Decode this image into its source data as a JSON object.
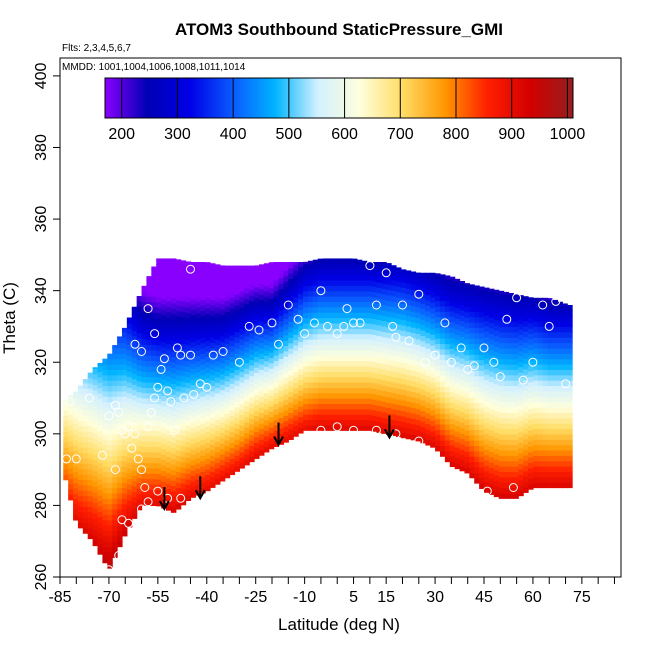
{
  "chart_data": {
    "type": "heatmap",
    "title": "ATOM3 Southbound StaticPressure_GMI",
    "notes": [
      "Flts: 2,3,4,5,6,7",
      "MMDD: 1001,1004,1006,1008,1011,1014"
    ],
    "xlabel": "Latitude (deg N)",
    "ylabel": "Theta (C)",
    "xlim": [
      -85,
      87
    ],
    "ylim": [
      260,
      405
    ],
    "x_ticks": [
      -85,
      -70,
      -55,
      -40,
      -25,
      -10,
      5,
      15,
      30,
      45,
      60,
      75
    ],
    "y_ticks": [
      260,
      280,
      300,
      320,
      340,
      360,
      380,
      400
    ],
    "colorbar": {
      "ticks": [
        200,
        300,
        400,
        500,
        600,
        700,
        800,
        900,
        1000
      ],
      "range": [
        170,
        1010
      ],
      "colors": [
        "#8a00ff",
        "#0000b4",
        "#0000e6",
        "#0a5aff",
        "#00b4ff",
        "#d2f0ff",
        "#ffffdc",
        "#ffdc64",
        "#ff9600",
        "#ff1e00",
        "#d20000",
        "#961e1e"
      ]
    },
    "surface": {
      "lat": [
        -84,
        -80,
        -75,
        -70,
        -65,
        -60,
        -55,
        -50,
        -45,
        -40,
        -35,
        -30,
        -25,
        -20,
        -15,
        -10,
        -5,
        0,
        5,
        10,
        15,
        20,
        25,
        30,
        35,
        40,
        45,
        50,
        55,
        60,
        65,
        71
      ],
      "theta_bottom": [
        290,
        275,
        270,
        262,
        272,
        280,
        280,
        278,
        282,
        284,
        287,
        290,
        293,
        296,
        298,
        301,
        301,
        301,
        301,
        301,
        300,
        299,
        298,
        296,
        291,
        289,
        284,
        282,
        282,
        285,
        285,
        285
      ],
      "theta_top": [
        309,
        312,
        318,
        322,
        330,
        340,
        349,
        349,
        348,
        348,
        347,
        347,
        347,
        348,
        348,
        348,
        349,
        349,
        349,
        348,
        348,
        346,
        345,
        345,
        344,
        342,
        341,
        340,
        339,
        338,
        338,
        336
      ],
      "pressure_200_theta": [
        352,
        352,
        350,
        348,
        345,
        338,
        336,
        336,
        336,
        336,
        336,
        338,
        340,
        340,
        345,
        350,
        352,
        352,
        352,
        352,
        352,
        352,
        350,
        348,
        346,
        345,
        344,
        343,
        342,
        342,
        340,
        340
      ],
      "pressure_1000_theta": [
        270,
        265,
        262,
        258,
        266,
        272,
        273,
        272,
        275,
        277,
        280,
        283,
        287,
        290,
        292,
        294,
        295,
        295,
        295,
        295,
        294,
        293,
        292,
        290,
        285,
        283,
        278,
        276,
        276,
        279,
        279,
        279
      ]
    },
    "observations": [
      [
        -82,
        309
      ],
      [
        -83,
        293
      ],
      [
        -80,
        293
      ],
      [
        -76,
        310
      ],
      [
        -72,
        294
      ],
      [
        -70,
        305
      ],
      [
        -68,
        308
      ],
      [
        -67,
        306
      ],
      [
        -66,
        301
      ],
      [
        -65,
        300
      ],
      [
        -64,
        302
      ],
      [
        -63,
        296
      ],
      [
        -62,
        300
      ],
      [
        -61,
        293
      ],
      [
        -60,
        290
      ],
      [
        -59,
        285
      ],
      [
        -58,
        302
      ],
      [
        -57,
        306
      ],
      [
        -56,
        310
      ],
      [
        -55,
        313
      ],
      [
        -54,
        318
      ],
      [
        -53,
        321
      ],
      [
        -52,
        312
      ],
      [
        -51,
        309
      ],
      [
        -50,
        301
      ],
      [
        -49,
        324
      ],
      [
        -48,
        322
      ],
      [
        -47,
        310
      ],
      [
        -45,
        322
      ],
      [
        -44,
        311
      ],
      [
        -42,
        314
      ],
      [
        -40,
        313
      ],
      [
        -38,
        322
      ],
      [
        -35,
        323
      ],
      [
        -30,
        320
      ],
      [
        -27,
        330
      ],
      [
        -24,
        329
      ],
      [
        -20,
        331
      ],
      [
        -18,
        325
      ],
      [
        -15,
        336
      ],
      [
        -12,
        332
      ],
      [
        -10,
        328
      ],
      [
        -7,
        331
      ],
      [
        -5,
        340
      ],
      [
        -3,
        330
      ],
      [
        0,
        328
      ],
      [
        2,
        330
      ],
      [
        3,
        335
      ],
      [
        5,
        331
      ],
      [
        7,
        331
      ],
      [
        10,
        347
      ],
      [
        12,
        336
      ],
      [
        15,
        345
      ],
      [
        17,
        330
      ],
      [
        18,
        327
      ],
      [
        20,
        336
      ],
      [
        22,
        326
      ],
      [
        25,
        339
      ],
      [
        27,
        320
      ],
      [
        30,
        322
      ],
      [
        33,
        331
      ],
      [
        35,
        320
      ],
      [
        38,
        324
      ],
      [
        40,
        318
      ],
      [
        42,
        319
      ],
      [
        45,
        324
      ],
      [
        48,
        320
      ],
      [
        50,
        316
      ],
      [
        52,
        332
      ],
      [
        55,
        338
      ],
      [
        57,
        315
      ],
      [
        60,
        320
      ],
      [
        63,
        336
      ],
      [
        65,
        330
      ],
      [
        67,
        337
      ],
      [
        70,
        314
      ],
      [
        -66,
        276
      ],
      [
        -64,
        275
      ],
      [
        -62,
        272
      ],
      [
        -60,
        279
      ],
      [
        -58,
        281
      ],
      [
        -55,
        284
      ],
      [
        -52,
        282
      ],
      [
        -48,
        282
      ],
      [
        -45,
        278
      ],
      [
        -42,
        281
      ],
      [
        -5,
        301
      ],
      [
        0,
        302
      ],
      [
        5,
        301
      ],
      [
        12,
        301
      ],
      [
        18,
        300
      ],
      [
        25,
        298
      ],
      [
        31,
        291
      ],
      [
        38,
        286
      ],
      [
        46,
        284
      ],
      [
        54,
        285
      ],
      [
        -70,
        262
      ],
      [
        -67,
        266
      ],
      [
        -68,
        290
      ],
      [
        -58,
        335
      ],
      [
        -64,
        347
      ],
      [
        -45,
        346
      ],
      [
        -56,
        328
      ],
      [
        -60,
        323
      ],
      [
        -62,
        325
      ]
    ],
    "arrows": [
      [
        -53,
        279
      ],
      [
        -42,
        282
      ],
      [
        -18,
        297
      ],
      [
        16,
        299
      ]
    ]
  }
}
